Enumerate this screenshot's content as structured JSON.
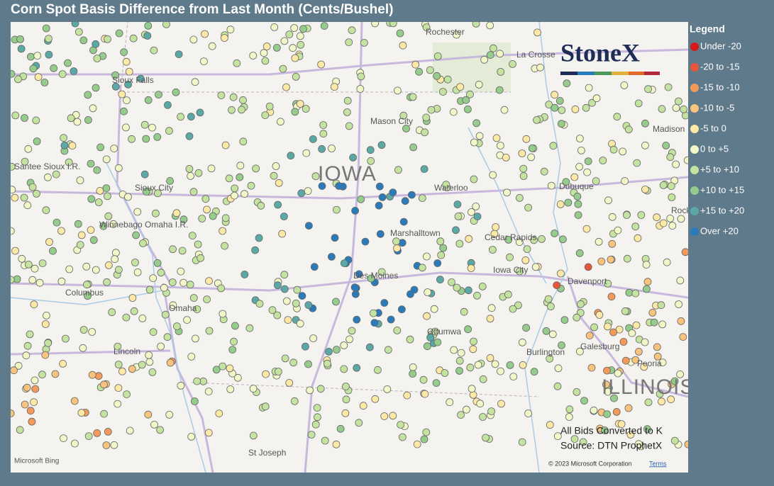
{
  "header": {
    "title": "Corn Spot Basis Difference from Last Month (Cents/Bushel)"
  },
  "legend": {
    "title": "Legend",
    "items": [
      {
        "label": "Under -20",
        "color": "#d7191c"
      },
      {
        "label": "-20 to -15",
        "color": "#e8553a"
      },
      {
        "label": "-15 to -10",
        "color": "#f39a5a"
      },
      {
        "label": "-10 to -5",
        "color": "#f8c47d"
      },
      {
        "label": "-5 to 0",
        "color": "#fde9a5"
      },
      {
        "label": "0 to +5",
        "color": "#f1f7c6"
      },
      {
        "label": "+5 to +10",
        "color": "#c5e3a0"
      },
      {
        "label": "+10 to +15",
        "color": "#95cc8c"
      },
      {
        "label": "+15 to +20",
        "color": "#5aa9a6"
      },
      {
        "label": "Over +20",
        "color": "#2b7bba"
      }
    ]
  },
  "logo": "StoneX",
  "map_labels": {
    "rochester": "Rochester",
    "la_crosse": "La Crosse",
    "sioux_falls": "Sioux Falls",
    "mason_city": "Mason City",
    "iowa": "IOWA",
    "waterloo": "Waterloo",
    "sioux_city": "Sioux City",
    "dubuque": "Dubuque",
    "santee": "Santee Sioux I.R.",
    "winnebago": "Winnebago Omaha I.R.",
    "marshalltown": "Marshalltown",
    "cedar_rapids": "Cedar Rapids",
    "columbus": "Columbus",
    "des_moines": "Des Moines",
    "iowa_city": "Iowa City",
    "davenport": "Davenport",
    "omaha": "Omaha",
    "ottumwa": "Ottumwa",
    "lincoln": "Lincoln",
    "burlington": "Burlington",
    "galesburg": "Galesburg",
    "peoria": "Peoria",
    "illinois": "ILLINOIS",
    "st_joseph": "St Joseph",
    "madison": "Madison",
    "rock": "Rock"
  },
  "notes": [
    "All Bids Converted to K",
    "Source: DTN ProphetX"
  ],
  "attribution": {
    "bing": "Microsoft Bing",
    "copyright": "© 2023 Microsoft Corporation",
    "terms": "Terms"
  }
}
